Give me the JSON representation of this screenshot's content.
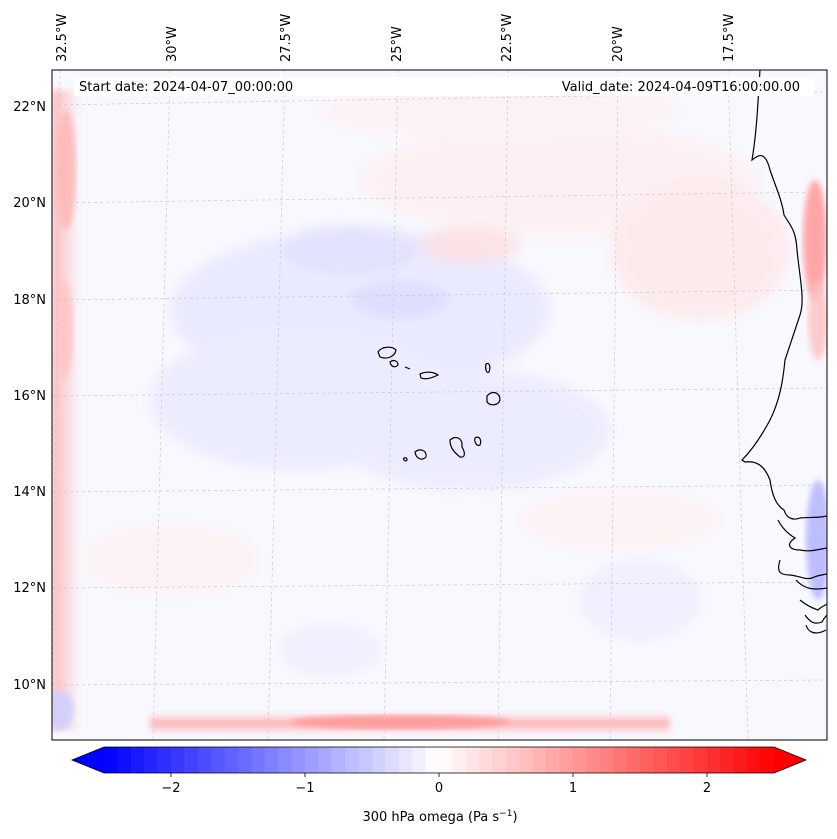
{
  "map": {
    "start_label": "Start date: 2024-04-07_00:00:00",
    "valid_label": "Valid_date: 2024-04-09T16:00:00.00",
    "lon_labels": [
      "32.5°W",
      "30°W",
      "27.5°W",
      "25°W",
      "22.5°W",
      "20°W",
      "17.5°W"
    ],
    "lat_labels": [
      "22°N",
      "20°N",
      "18°N",
      "16°N",
      "14°N",
      "12°N",
      "10°N"
    ]
  },
  "colorbar": {
    "label_text": "300 hPa omega (Pa s",
    "label_exp": "−1",
    "label_close": ")",
    "tick_labels": [
      "−2",
      "−1",
      "0",
      "1",
      "2"
    ],
    "ticks": [
      -2,
      -1,
      0,
      1,
      2
    ],
    "range": [
      -2.5,
      2.5
    ],
    "extend": "both",
    "colormap": "bwr",
    "low_color": "#0000ff",
    "mid_color": "#ffffff",
    "high_color": "#ff0000"
  },
  "colors": {
    "coast": "#000000",
    "grid": "#c8c8c8",
    "field_base": "#f8f8ff",
    "positive_tint": "#ffd6d6",
    "negative_tint": "#dcdcff"
  }
}
